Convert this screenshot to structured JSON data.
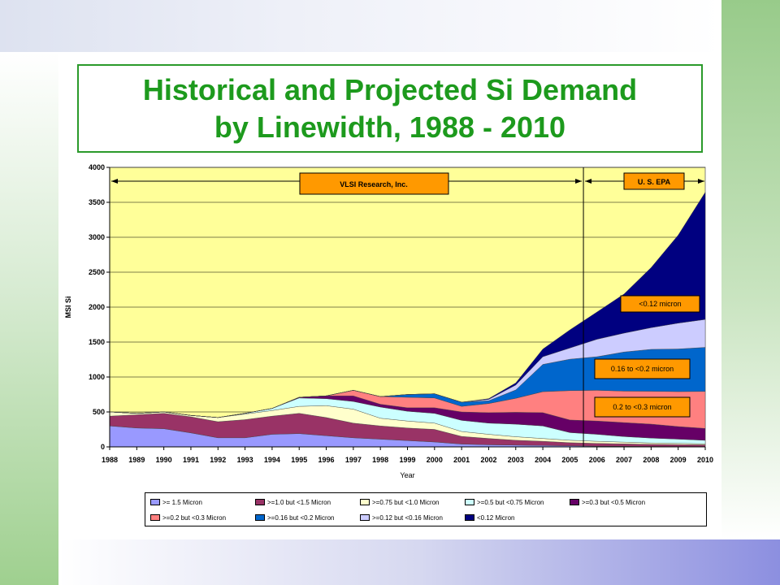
{
  "slide": {
    "title_line1": "Historical and Projected Si Demand",
    "title_line2": "by Linewidth, 1988 - 2010"
  },
  "chart_data": {
    "type": "area",
    "stacked": true,
    "xlabel": "Year",
    "ylabel": "MSI Si",
    "ylim": [
      0,
      4000
    ],
    "yticks": [
      0,
      500,
      1000,
      1500,
      2000,
      2500,
      3000,
      3500,
      4000
    ],
    "x": [
      1988,
      1989,
      1990,
      1991,
      1992,
      1993,
      1994,
      1995,
      1996,
      1997,
      1998,
      1999,
      2000,
      2001,
      2002,
      2003,
      2004,
      2005,
      2006,
      2007,
      2008,
      2009,
      2010
    ],
    "grid": true,
    "plot_background": "#ffff99",
    "legend_position": "bottom",
    "series": [
      {
        "name": ">= 1.5 Micron",
        "color": "#9999ff",
        "values": [
          300,
          270,
          260,
          200,
          130,
          130,
          180,
          190,
          160,
          130,
          110,
          90,
          70,
          40,
          30,
          25,
          20,
          15,
          10,
          8,
          6,
          5,
          4
        ]
      },
      {
        "name": ">=1.0 but <1.5 Micron",
        "color": "#993366",
        "values": [
          140,
          190,
          220,
          230,
          230,
          260,
          260,
          290,
          260,
          210,
          190,
          180,
          180,
          110,
          90,
          70,
          60,
          45,
          40,
          35,
          30,
          28,
          25
        ]
      },
      {
        "name": ">=0.75 but <1.0 Micron",
        "color": "#ffffcc",
        "values": [
          60,
          20,
          20,
          20,
          60,
          80,
          80,
          100,
          170,
          200,
          110,
          100,
          90,
          70,
          60,
          50,
          40,
          35,
          30,
          25,
          20,
          18,
          15
        ]
      },
      {
        "name": ">=0.5 but <0.75 Micron",
        "color": "#ccffff",
        "values": [
          0,
          0,
          0,
          0,
          0,
          10,
          30,
          120,
          100,
          110,
          160,
          140,
          140,
          160,
          160,
          180,
          180,
          110,
          100,
          80,
          70,
          60,
          50
        ]
      },
      {
        "name": ">=0.3 but <0.5 Micron",
        "color": "#660066",
        "values": [
          0,
          0,
          0,
          0,
          0,
          0,
          0,
          10,
          40,
          80,
          40,
          50,
          80,
          120,
          150,
          170,
          190,
          180,
          190,
          200,
          200,
          180,
          170
        ]
      },
      {
        "name": ">=0.2 but <0.3 Micron",
        "color": "#ff8080",
        "values": [
          0,
          0,
          0,
          0,
          0,
          0,
          0,
          0,
          0,
          80,
          110,
          150,
          140,
          80,
          130,
          200,
          300,
          420,
          440,
          450,
          470,
          500,
          530
        ]
      },
      {
        "name": ">=0.16 but <0.2 Micron",
        "color": "#0066cc",
        "values": [
          0,
          0,
          0,
          0,
          0,
          0,
          0,
          0,
          0,
          0,
          0,
          40,
          60,
          60,
          40,
          120,
          390,
          450,
          480,
          560,
          600,
          610,
          630
        ]
      },
      {
        "name": ">=0.12 but <0.16 Micron",
        "color": "#ccccff",
        "values": [
          0,
          0,
          0,
          0,
          0,
          0,
          0,
          0,
          0,
          0,
          0,
          0,
          0,
          0,
          20,
          70,
          110,
          160,
          250,
          270,
          310,
          370,
          400
        ]
      },
      {
        "name": "<0.12 Micron",
        "color": "#000080",
        "values": [
          0,
          0,
          0,
          0,
          0,
          0,
          0,
          0,
          0,
          0,
          0,
          0,
          0,
          0,
          10,
          30,
          110,
          260,
          390,
          560,
          860,
          1260,
          1820
        ]
      }
    ],
    "annotations": {
      "source_left": "VLSI Research, Inc.",
      "source_right": "U. S. EPA",
      "split_year": 2005.5,
      "label_a": "<0.12 micron",
      "label_b": "0.16 to <0.2 micron",
      "label_c": "0.2 to <0.3 micron",
      "label_color": "#ff9900"
    }
  }
}
